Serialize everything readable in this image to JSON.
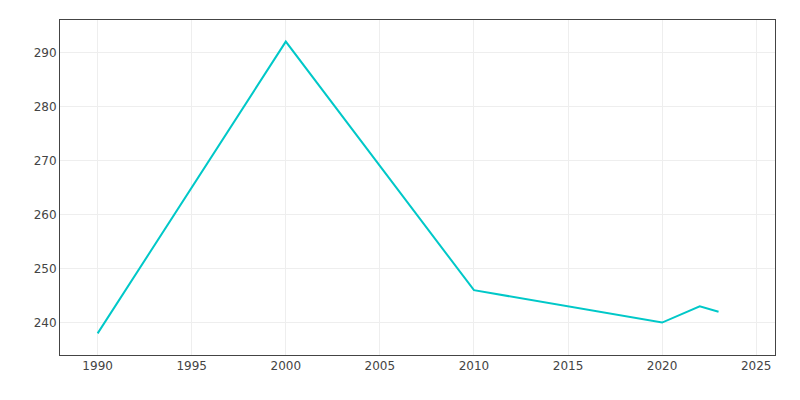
{
  "chart_data": {
    "type": "line",
    "x": [
      1990,
      2000,
      2010,
      2020,
      2022,
      2023
    ],
    "values": [
      238,
      292,
      246,
      240,
      243,
      242
    ],
    "color": "#00C8C8",
    "xlim": [
      1988,
      2026
    ],
    "ylim": [
      234,
      296
    ],
    "xticks": [
      1990,
      1995,
      2000,
      2005,
      2010,
      2015,
      2020,
      2025
    ],
    "yticks": [
      240,
      250,
      260,
      270,
      280,
      290
    ],
    "grid": true
  }
}
